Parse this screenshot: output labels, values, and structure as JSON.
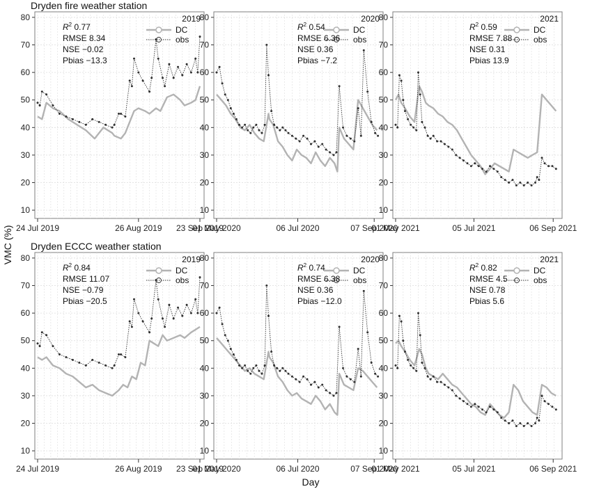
{
  "figure": {
    "ylabel": "VMC (%)",
    "xlabel": "Day",
    "row_titles": [
      "Dryden fire weather station",
      "Dryden ECCC weather station"
    ],
    "legend": {
      "dc": "DC",
      "obs": "obs"
    },
    "colors": {
      "dc": "#b3b3b3",
      "obs": "#303030",
      "grid": "#dcdcdc"
    },
    "yticks": [
      10,
      20,
      30,
      40,
      50,
      60,
      70,
      80
    ],
    "ylim": [
      7,
      82
    ]
  },
  "chart_data": [
    {
      "type": "line",
      "station": "Dryden fire weather station",
      "year": "2019",
      "xticks": [
        "24 Jul 2019",
        "26 Aug 2019",
        "23 Sep 2019"
      ],
      "stats": {
        "r2": "0.77",
        "rmse": "RMSE 8.34",
        "nse": "NSE −0.02",
        "pbias": "Pbias −13.3"
      },
      "series": [
        {
          "name": "DC",
          "x": [
            0,
            2,
            4,
            7,
            10,
            14,
            18,
            22,
            26,
            30,
            34,
            35,
            38,
            40,
            44,
            46,
            49,
            51,
            54,
            56,
            59,
            62,
            65,
            67,
            70,
            72,
            74
          ],
          "values": [
            44,
            43,
            49,
            47,
            46,
            43,
            41,
            39,
            36,
            40,
            38,
            37,
            36,
            38,
            46,
            47,
            46,
            45,
            47,
            46,
            51,
            52,
            50,
            48,
            49,
            50,
            55
          ]
        },
        {
          "name": "obs",
          "x": [
            0,
            1,
            2,
            4,
            7,
            10,
            13,
            16,
            19,
            22,
            25,
            28,
            31,
            34,
            35,
            37,
            38,
            40,
            42,
            43,
            44,
            46,
            48,
            51,
            52,
            54,
            55,
            57,
            58,
            60,
            62,
            64,
            66,
            68,
            70,
            72,
            73,
            74
          ],
          "values": [
            49,
            48,
            53,
            52,
            48,
            45,
            44,
            43,
            42,
            41,
            43,
            42,
            41,
            40,
            41,
            45,
            45,
            44,
            57,
            55,
            65,
            60,
            57,
            53,
            58,
            72,
            65,
            58,
            55,
            63,
            58,
            62,
            59,
            63,
            60,
            65,
            60,
            73
          ]
        }
      ]
    },
    {
      "type": "line",
      "station": "Dryden fire weather station",
      "year": "2020",
      "xticks": [
        "01 May 2020",
        "06 Jul 2020",
        "07 Sep 2020"
      ],
      "stats": {
        "r2": "0.54",
        "rmse": "RMSE 6.36",
        "nse": "NSE 0.36",
        "pbias": "Pbias −7.2"
      },
      "series": [
        {
          "name": "DC",
          "x": [
            0,
            5,
            10,
            15,
            20,
            25,
            30,
            35,
            40,
            45,
            50,
            55,
            56,
            60,
            65,
            70,
            75,
            80,
            85,
            90,
            95,
            100,
            105,
            110,
            115,
            120,
            125,
            128,
            130,
            135,
            140,
            145,
            150,
            155,
            160,
            165,
            170
          ],
          "values": [
            52,
            50,
            48,
            45,
            43,
            40,
            39,
            41,
            38,
            36,
            35,
            45,
            43,
            41,
            35,
            33,
            30,
            28,
            32,
            30,
            29,
            27,
            31,
            28,
            26,
            29,
            27,
            24,
            40,
            36,
            34,
            32,
            50,
            47,
            44,
            41,
            39
          ]
        },
        {
          "name": "obs",
          "x": [
            0,
            3,
            6,
            9,
            12,
            15,
            18,
            21,
            24,
            27,
            30,
            33,
            36,
            39,
            42,
            45,
            48,
            51,
            53,
            55,
            58,
            61,
            64,
            67,
            70,
            73,
            76,
            80,
            84,
            88,
            92,
            96,
            100,
            104,
            108,
            112,
            116,
            120,
            124,
            127,
            130,
            134,
            138,
            142,
            146,
            150,
            153,
            156,
            160,
            164,
            168,
            171
          ],
          "values": [
            60,
            62,
            56,
            52,
            50,
            47,
            45,
            43,
            41,
            40,
            41,
            39,
            38,
            40,
            41,
            39,
            38,
            41,
            70,
            59,
            46,
            41,
            40,
            39,
            40,
            39,
            38,
            37,
            36,
            35,
            37,
            36,
            34,
            35,
            33,
            34,
            32,
            31,
            30,
            31,
            55,
            40,
            37,
            36,
            35,
            47,
            37,
            68,
            53,
            42,
            38,
            37
          ]
        }
      ]
    },
    {
      "type": "line",
      "station": "Dryden fire weather station",
      "year": "2021",
      "xticks": [
        "01 May 2021",
        "05 Jul 2021",
        "06 Sep 2021"
      ],
      "stats": {
        "r2": "0.59",
        "rmse": "RMSE 7.88",
        "nse": "NSE 0.31",
        "pbias": "Pbias 13.9"
      },
      "series": [
        {
          "name": "DC",
          "x": [
            0,
            3,
            6,
            10,
            15,
            20,
            25,
            28,
            32,
            35,
            40,
            45,
            50,
            55,
            60,
            65,
            70,
            75,
            80,
            85,
            90,
            95,
            100,
            105,
            110,
            115,
            120,
            125,
            130,
            135,
            140,
            145,
            150,
            155,
            160,
            165,
            170
          ],
          "values": [
            50,
            52,
            49,
            47,
            44,
            42,
            55,
            53,
            49,
            48,
            47,
            45,
            44,
            42,
            41,
            39,
            36,
            33,
            30,
            28,
            26,
            23,
            25,
            27,
            26,
            25,
            24,
            32,
            31,
            30,
            29,
            30,
            31,
            52,
            50,
            48,
            46
          ]
        },
        {
          "name": "obs",
          "x": [
            0,
            2,
            4,
            6,
            8,
            10,
            13,
            16,
            19,
            22,
            24,
            26,
            28,
            31,
            34,
            37,
            40,
            44,
            48,
            52,
            56,
            60,
            64,
            68,
            72,
            76,
            80,
            84,
            88,
            92,
            96,
            100,
            104,
            108,
            112,
            116,
            120,
            124,
            128,
            132,
            136,
            140,
            144,
            148,
            150,
            152,
            155,
            158,
            162,
            166,
            170
          ],
          "values": [
            41,
            40,
            59,
            57,
            50,
            46,
            43,
            41,
            40,
            39,
            60,
            52,
            42,
            40,
            37,
            36,
            37,
            35,
            35,
            34,
            33,
            32,
            30,
            29,
            28,
            27,
            26,
            27,
            26,
            25,
            24,
            26,
            25,
            24,
            22,
            21,
            20,
            21,
            19,
            20,
            19,
            20,
            19,
            20,
            22,
            21,
            29,
            27,
            26,
            26,
            25
          ]
        }
      ]
    },
    {
      "type": "line",
      "station": "Dryden ECCC weather station",
      "year": "2019",
      "xticks": [
        "24 Jul 2019",
        "26 Aug 2019",
        "23 Sep 2019"
      ],
      "stats": {
        "r2": "0.84",
        "rmse": "RMSE 11.07",
        "nse": "NSE −0.79",
        "pbias": "Pbias −20.5"
      },
      "series": [
        {
          "name": "DC",
          "x": [
            0,
            2,
            4,
            7,
            10,
            13,
            16,
            19,
            22,
            25,
            28,
            31,
            34,
            37,
            39,
            41,
            43,
            45,
            47,
            49,
            51,
            53,
            55,
            57,
            59,
            62,
            65,
            67,
            70,
            72,
            74
          ],
          "values": [
            44,
            43,
            44,
            41,
            40,
            38,
            37,
            35,
            33,
            34,
            32,
            31,
            30,
            32,
            34,
            33,
            37,
            36,
            42,
            41,
            50,
            49,
            48,
            52,
            50,
            51,
            52,
            51,
            53,
            54,
            55
          ]
        },
        {
          "name": "obs",
          "x": [
            0,
            1,
            2,
            4,
            7,
            10,
            13,
            16,
            19,
            22,
            25,
            28,
            31,
            34,
            35,
            37,
            38,
            40,
            42,
            43,
            44,
            46,
            48,
            51,
            52,
            54,
            55,
            57,
            58,
            60,
            62,
            64,
            66,
            68,
            70,
            72,
            73,
            74
          ],
          "values": [
            49,
            48,
            53,
            52,
            48,
            45,
            44,
            43,
            42,
            41,
            43,
            42,
            41,
            40,
            41,
            45,
            45,
            44,
            57,
            55,
            65,
            60,
            57,
            53,
            58,
            72,
            65,
            58,
            55,
            63,
            58,
            62,
            59,
            63,
            60,
            65,
            60,
            73
          ]
        }
      ]
    },
    {
      "type": "line",
      "station": "Dryden ECCC weather station",
      "year": "2020",
      "xticks": [
        "01 May 2020",
        "06 Jul 2020",
        "07 Sep 2020"
      ],
      "stats": {
        "r2": "0.74",
        "rmse": "RMSE 6.38",
        "nse": "NSE 0.36",
        "pbias": "Pbias −12.0"
      },
      "series": [
        {
          "name": "DC",
          "x": [
            0,
            5,
            10,
            15,
            20,
            25,
            30,
            35,
            40,
            45,
            50,
            55,
            56,
            60,
            65,
            70,
            75,
            80,
            85,
            90,
            95,
            100,
            105,
            110,
            115,
            120,
            125,
            128,
            130,
            135,
            140,
            145,
            150,
            155,
            160,
            165,
            170
          ],
          "values": [
            51,
            49,
            47,
            45,
            43,
            41,
            39,
            40,
            38,
            37,
            36,
            46,
            44,
            42,
            37,
            35,
            32,
            30,
            31,
            29,
            28,
            27,
            30,
            28,
            25,
            27,
            24,
            23,
            38,
            34,
            33,
            32,
            40,
            39,
            37,
            35,
            33
          ]
        },
        {
          "name": "obs",
          "x": [
            0,
            3,
            6,
            9,
            12,
            15,
            18,
            21,
            24,
            27,
            30,
            33,
            36,
            39,
            42,
            45,
            48,
            51,
            53,
            55,
            58,
            61,
            64,
            67,
            70,
            73,
            76,
            80,
            84,
            88,
            92,
            96,
            100,
            104,
            108,
            112,
            116,
            120,
            124,
            127,
            130,
            134,
            138,
            142,
            146,
            150,
            153,
            156,
            160,
            164,
            168,
            171
          ],
          "values": [
            60,
            62,
            56,
            52,
            50,
            47,
            45,
            43,
            41,
            40,
            41,
            39,
            38,
            40,
            41,
            39,
            38,
            41,
            70,
            59,
            46,
            41,
            40,
            39,
            40,
            39,
            38,
            37,
            36,
            35,
            37,
            36,
            34,
            35,
            33,
            34,
            32,
            31,
            30,
            31,
            55,
            40,
            37,
            36,
            35,
            47,
            37,
            68,
            53,
            42,
            38,
            37
          ]
        }
      ]
    },
    {
      "type": "line",
      "station": "Dryden ECCC weather station",
      "year": "2021",
      "xticks": [
        "01 May 2021",
        "05 Jul 2021",
        "06 Sep 2021"
      ],
      "stats": {
        "r2": "0.82",
        "rmse": "RMSE 4.5",
        "nse": "NSE 0.78",
        "pbias": "Pbias 5.6"
      },
      "series": [
        {
          "name": "DC",
          "x": [
            0,
            3,
            6,
            10,
            15,
            20,
            25,
            28,
            32,
            35,
            40,
            45,
            50,
            55,
            60,
            65,
            70,
            75,
            80,
            85,
            90,
            95,
            100,
            105,
            110,
            115,
            120,
            125,
            130,
            135,
            140,
            145,
            150,
            155,
            160,
            165,
            170
          ],
          "values": [
            49,
            50,
            48,
            46,
            43,
            41,
            47,
            45,
            40,
            38,
            37,
            36,
            38,
            36,
            34,
            33,
            31,
            29,
            27,
            26,
            24,
            23,
            27,
            25,
            23,
            22,
            24,
            34,
            32,
            28,
            26,
            24,
            23,
            34,
            33,
            31,
            30
          ]
        },
        {
          "name": "obs",
          "x": [
            0,
            2,
            4,
            6,
            8,
            10,
            13,
            16,
            19,
            22,
            24,
            26,
            28,
            31,
            34,
            37,
            40,
            44,
            48,
            52,
            56,
            60,
            64,
            68,
            72,
            76,
            80,
            84,
            88,
            92,
            96,
            100,
            104,
            108,
            112,
            116,
            120,
            124,
            128,
            132,
            136,
            140,
            144,
            148,
            150,
            152,
            155,
            158,
            162,
            166,
            170
          ],
          "values": [
            41,
            40,
            59,
            57,
            50,
            46,
            43,
            41,
            40,
            39,
            60,
            52,
            42,
            40,
            37,
            36,
            37,
            35,
            35,
            34,
            33,
            32,
            30,
            29,
            28,
            27,
            26,
            27,
            26,
            25,
            24,
            26,
            25,
            24,
            22,
            21,
            20,
            21,
            19,
            20,
            19,
            20,
            19,
            20,
            22,
            21,
            30,
            28,
            27,
            26,
            25
          ]
        }
      ]
    }
  ]
}
